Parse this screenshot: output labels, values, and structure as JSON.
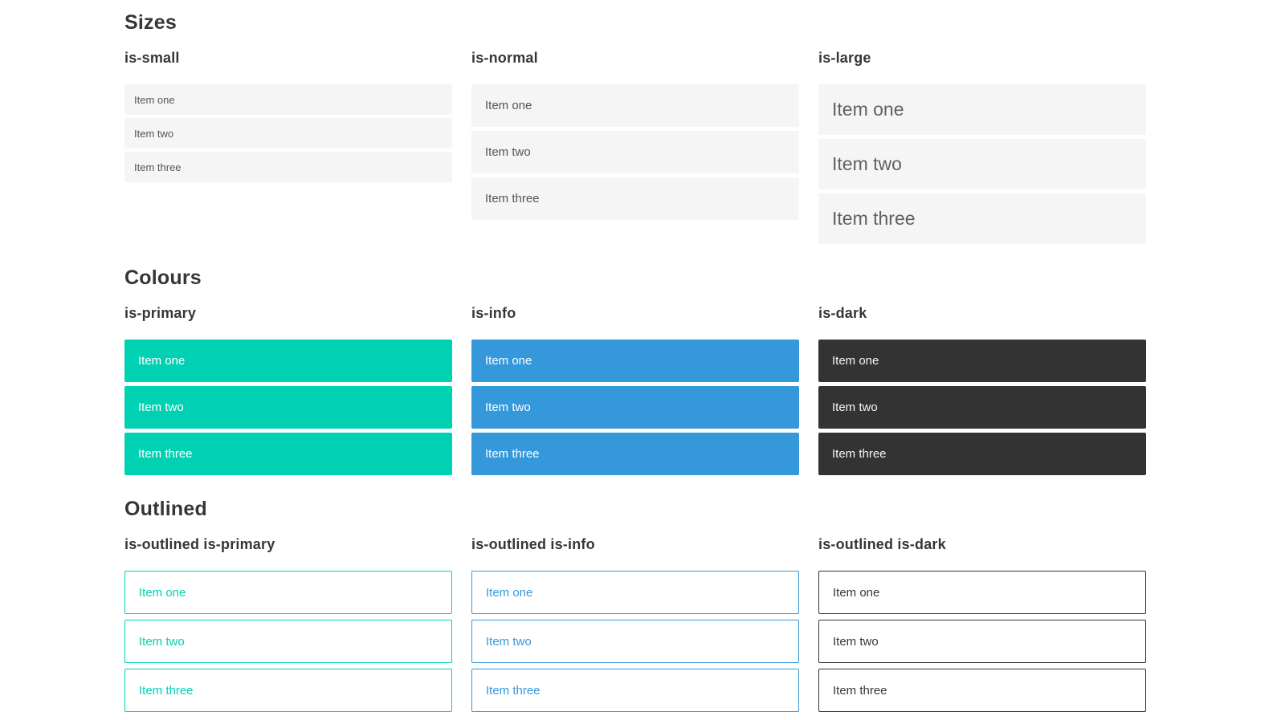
{
  "colors": {
    "primary": "#00d1b2",
    "info": "#3498db",
    "dark": "#333333",
    "dark_text": "#363636",
    "item_bg": "#f5f5f5",
    "text": "#555555",
    "heading": "#363636"
  },
  "sections": [
    {
      "title": "Sizes",
      "groups": [
        {
          "label": "is-small",
          "variant": "small",
          "items": [
            "Item one",
            "Item two",
            "Item three"
          ]
        },
        {
          "label": "is-normal",
          "variant": "normal",
          "items": [
            "Item one",
            "Item two",
            "Item three"
          ]
        },
        {
          "label": "is-large",
          "variant": "large",
          "items": [
            "Item one",
            "Item two",
            "Item three"
          ]
        }
      ]
    },
    {
      "title": "Colours",
      "groups": [
        {
          "label": "is-primary",
          "variant": "primary",
          "items": [
            "Item one",
            "Item two",
            "Item three"
          ]
        },
        {
          "label": "is-info",
          "variant": "info",
          "items": [
            "Item one",
            "Item two",
            "Item three"
          ]
        },
        {
          "label": "is-dark",
          "variant": "dark",
          "items": [
            "Item one",
            "Item two",
            "Item three"
          ]
        }
      ]
    },
    {
      "title": "Outlined",
      "groups": [
        {
          "label": "is-outlined is-primary",
          "variant": "outlined-primary",
          "items": [
            "Item one",
            "Item two",
            "Item three"
          ]
        },
        {
          "label": "is-outlined is-info",
          "variant": "outlined-info",
          "items": [
            "Item one",
            "Item two",
            "Item three"
          ]
        },
        {
          "label": "is-outlined is-dark",
          "variant": "outlined-dark",
          "items": [
            "Item one",
            "Item two",
            "Item three"
          ]
        }
      ]
    }
  ]
}
